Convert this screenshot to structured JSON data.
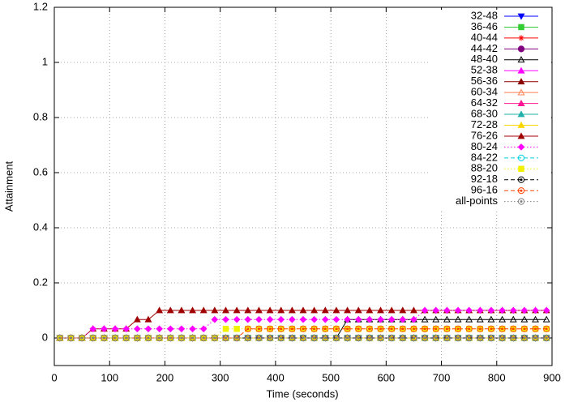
{
  "chart_data": {
    "type": "line",
    "x_label": "Time (seconds)",
    "y_label": "Attainment",
    "xlim": [
      0,
      900
    ],
    "ylim": [
      -0.1,
      1.2
    ],
    "xticks": [
      0,
      100,
      200,
      300,
      400,
      500,
      600,
      700,
      800,
      900
    ],
    "yticks": [
      0,
      0.2,
      0.4,
      0.6,
      0.8,
      1,
      1.2
    ],
    "grid": true,
    "legend": "top-right",
    "x": [
      10,
      30,
      50,
      70,
      90,
      110,
      130,
      150,
      170,
      190,
      210,
      230,
      250,
      270,
      290,
      310,
      330,
      350,
      370,
      390,
      410,
      430,
      450,
      470,
      490,
      510,
      530,
      550,
      570,
      590,
      610,
      630,
      650,
      670,
      690,
      710,
      730,
      750,
      770,
      790,
      810,
      830,
      850,
      870,
      890
    ],
    "series": [
      {
        "name": "32-48",
        "color": "#0000ff",
        "marker": "triangle-down",
        "dash": "solid",
        "values": [
          0,
          0,
          0,
          0,
          0,
          0,
          0,
          0,
          0,
          0,
          0,
          0,
          0,
          0,
          0,
          0,
          0,
          0,
          0,
          0,
          0,
          0,
          0,
          0,
          0,
          0,
          0,
          0,
          0,
          0,
          0,
          0,
          0,
          0,
          0,
          0,
          0,
          0,
          0,
          0,
          0,
          0,
          0,
          0,
          0
        ]
      },
      {
        "name": "36-46",
        "color": "#33cc33",
        "marker": "square",
        "dash": "solid",
        "values": [
          0,
          0,
          0,
          0,
          0,
          0,
          0,
          0,
          0,
          0,
          0,
          0,
          0,
          0,
          0,
          0,
          0,
          0,
          0,
          0,
          0,
          0,
          0,
          0,
          0,
          0,
          0,
          0,
          0,
          0,
          0,
          0,
          0,
          0,
          0,
          0,
          0,
          0,
          0,
          0,
          0,
          0,
          0,
          0,
          0
        ]
      },
      {
        "name": "40-44",
        "color": "#ff0000",
        "marker": "star",
        "dash": "solid",
        "values": [
          0,
          0,
          0,
          0,
          0,
          0,
          0,
          0,
          0,
          0,
          0,
          0,
          0,
          0,
          0,
          0,
          0,
          0,
          0,
          0,
          0,
          0,
          0,
          0,
          0,
          0,
          0,
          0,
          0,
          0,
          0,
          0,
          0,
          0,
          0,
          0,
          0,
          0,
          0,
          0,
          0,
          0,
          0,
          0,
          0
        ]
      },
      {
        "name": "44-42",
        "color": "#800080",
        "marker": "circle",
        "dash": "solid",
        "values": [
          0,
          0,
          0,
          0,
          0,
          0,
          0,
          0,
          0,
          0,
          0,
          0,
          0,
          0,
          0,
          0,
          0,
          0,
          0,
          0,
          0,
          0,
          0,
          0,
          0,
          0,
          0,
          0,
          0,
          0,
          0,
          0,
          0,
          0,
          0,
          0,
          0,
          0,
          0,
          0,
          0,
          0,
          0,
          0,
          0
        ]
      },
      {
        "name": "48-40",
        "color": "#000000",
        "marker": "open-triangle",
        "dash": "solid",
        "values": [
          0,
          0,
          0,
          0,
          0,
          0,
          0,
          0,
          0,
          0,
          0,
          0,
          0,
          0,
          0,
          0,
          0,
          0,
          0,
          0,
          0,
          0,
          0,
          0,
          0,
          0,
          0.067,
          0.067,
          0.067,
          0.067,
          0.067,
          0.067,
          0.067,
          0.067,
          0.067,
          0.067,
          0.067,
          0.067,
          0.067,
          0.067,
          0.067,
          0.067,
          0.067,
          0.067,
          0.067
        ]
      },
      {
        "name": "52-38",
        "color": "#ff00ff",
        "marker": "triangle",
        "dash": "solid",
        "values": [
          0,
          0,
          0,
          0,
          0,
          0,
          0,
          0,
          0,
          0,
          0,
          0,
          0,
          0,
          0,
          0,
          0,
          0,
          0,
          0,
          0,
          0,
          0,
          0,
          0,
          0,
          0,
          0,
          0,
          0,
          0,
          0,
          0,
          0,
          0,
          0,
          0,
          0,
          0,
          0,
          0,
          0,
          0,
          0,
          0
        ]
      },
      {
        "name": "56-36",
        "color": "#8b0000",
        "marker": "triangle",
        "dash": "solid",
        "values": [
          0,
          0,
          0,
          0,
          0,
          0,
          0,
          0,
          0,
          0,
          0,
          0,
          0,
          0,
          0,
          0,
          0,
          0,
          0,
          0,
          0,
          0,
          0,
          0,
          0,
          0,
          0,
          0,
          0,
          0,
          0,
          0,
          0,
          0,
          0,
          0,
          0,
          0,
          0,
          0,
          0,
          0,
          0,
          0,
          0
        ]
      },
      {
        "name": "60-34",
        "color": "#ff7f50",
        "marker": "open-triangle",
        "dash": "solid",
        "values": [
          0,
          0,
          0,
          0,
          0,
          0,
          0,
          0,
          0,
          0,
          0,
          0,
          0,
          0,
          0,
          0,
          0,
          0,
          0,
          0,
          0,
          0,
          0,
          0,
          0,
          0,
          0,
          0,
          0,
          0,
          0,
          0,
          0,
          0,
          0,
          0,
          0,
          0,
          0,
          0,
          0,
          0,
          0,
          0,
          0
        ]
      },
      {
        "name": "64-32",
        "color": "#ff1493",
        "marker": "triangle",
        "dash": "solid",
        "values": [
          0,
          0,
          0,
          0,
          0,
          0,
          0,
          0,
          0,
          0,
          0,
          0,
          0,
          0,
          0,
          0,
          0,
          0,
          0,
          0,
          0,
          0,
          0,
          0,
          0,
          0,
          0,
          0,
          0,
          0,
          0,
          0,
          0,
          0,
          0,
          0,
          0,
          0,
          0,
          0,
          0,
          0,
          0,
          0,
          0
        ]
      },
      {
        "name": "68-30",
        "color": "#20b2aa",
        "marker": "triangle",
        "dash": "solid",
        "values": [
          0,
          0,
          0,
          0,
          0,
          0,
          0,
          0,
          0,
          0,
          0,
          0,
          0,
          0,
          0,
          0,
          0,
          0,
          0,
          0,
          0,
          0,
          0,
          0,
          0,
          0,
          0,
          0,
          0,
          0,
          0,
          0,
          0,
          0,
          0,
          0,
          0,
          0,
          0,
          0,
          0,
          0,
          0,
          0,
          0
        ]
      },
      {
        "name": "72-28",
        "color": "#ffd700",
        "marker": "triangle",
        "dash": "solid",
        "values": [
          0,
          0,
          0,
          0,
          0,
          0,
          0,
          0,
          0,
          0,
          0,
          0,
          0,
          0,
          0,
          0,
          0,
          0,
          0,
          0,
          0,
          0,
          0,
          0,
          0,
          0,
          0,
          0,
          0,
          0,
          0,
          0,
          0,
          0,
          0,
          0,
          0,
          0,
          0,
          0,
          0,
          0,
          0,
          0,
          0
        ]
      },
      {
        "name": "76-26",
        "color": "#a00000",
        "marker": "triangle",
        "dash": "solid",
        "values": [
          0,
          0,
          0,
          0.033,
          0.033,
          0.033,
          0.033,
          0.067,
          0.067,
          0.1,
          0.1,
          0.1,
          0.1,
          0.1,
          0.1,
          0.1,
          0.1,
          0.1,
          0.1,
          0.1,
          0.1,
          0.1,
          0.1,
          0.1,
          0.1,
          0.1,
          0.1,
          0.1,
          0.1,
          0.1,
          0.1,
          0.1,
          0.1,
          0.1,
          0.1,
          0.1,
          0.1,
          0.1,
          0.1,
          0.1,
          0.1,
          0.1,
          0.1,
          0.1,
          0.1
        ]
      },
      {
        "name": "80-24",
        "color": "#ff00ff",
        "marker": "diamond",
        "dash": "dotted",
        "values": [
          0,
          0,
          0,
          0.033,
          0.033,
          0.033,
          0.033,
          0.033,
          0.033,
          0.033,
          0.033,
          0.033,
          0.033,
          0.033,
          0.067,
          0.067,
          0.067,
          0.067,
          0.067,
          0.067,
          0.067,
          0.067,
          0.067,
          0.067,
          0.067,
          0.067,
          0.067,
          0.067,
          0.067,
          0.067,
          0.067,
          0.067,
          0.067,
          0.1,
          0.1,
          0.1,
          0.1,
          0.1,
          0.1,
          0.1,
          0.1,
          0.1,
          0.1,
          0.1,
          0.1
        ]
      },
      {
        "name": "84-22",
        "color": "#00d0e0",
        "marker": "open-circle",
        "dash": "dashed",
        "values": [
          0,
          0,
          0,
          0,
          0,
          0,
          0,
          0,
          0,
          0,
          0,
          0,
          0,
          0,
          0,
          0,
          0,
          0,
          0,
          0,
          0,
          0,
          0,
          0,
          0,
          0,
          0,
          0,
          0,
          0,
          0,
          0,
          0,
          0,
          0,
          0,
          0,
          0,
          0,
          0,
          0,
          0,
          0,
          0,
          0
        ]
      },
      {
        "name": "88-20",
        "color": "#f0f000",
        "marker": "square",
        "dash": "dotted",
        "values": [
          0,
          0,
          0,
          0,
          0,
          0,
          0,
          0,
          0,
          0,
          0,
          0,
          0,
          0,
          0,
          0.033,
          0.033,
          0.033,
          0.033,
          0.033,
          0.033,
          0.033,
          0.033,
          0.033,
          0.033,
          0.033,
          0.033,
          0.033,
          0.033,
          0.033,
          0.033,
          0.033,
          0.033,
          0.033,
          0.033,
          0.033,
          0.033,
          0.033,
          0.033,
          0.033,
          0.033,
          0.033,
          0.033,
          0.033,
          0.033
        ]
      },
      {
        "name": "92-18",
        "color": "#000000",
        "marker": "open-circle-dot",
        "dash": "dashed",
        "values": [
          0,
          0,
          0,
          0,
          0,
          0,
          0,
          0,
          0,
          0,
          0,
          0,
          0,
          0,
          0,
          0,
          0,
          0,
          0,
          0,
          0,
          0,
          0,
          0,
          0,
          0,
          0,
          0,
          0,
          0,
          0,
          0,
          0,
          0,
          0,
          0,
          0,
          0,
          0,
          0,
          0,
          0,
          0,
          0,
          0
        ]
      },
      {
        "name": "96-16",
        "color": "#ff4500",
        "marker": "open-circle-dot",
        "dash": "dashed",
        "values": [
          0,
          0,
          0,
          0,
          0,
          0,
          0,
          0,
          0,
          0,
          0,
          0,
          0,
          0,
          0,
          0,
          0,
          0.033,
          0.033,
          0.033,
          0.033,
          0.033,
          0.033,
          0.033,
          0.033,
          0.033,
          0.033,
          0.033,
          0.033,
          0.033,
          0.033,
          0.033,
          0.033,
          0.033,
          0.033,
          0.033,
          0.033,
          0.033,
          0.033,
          0.033,
          0.033,
          0.033,
          0.033,
          0.033,
          0.033
        ]
      },
      {
        "name": "all-points",
        "color": "#808080",
        "marker": "open-circle-dot",
        "dash": "dotted",
        "values": [
          0,
          0,
          0,
          0,
          0,
          0,
          0,
          0,
          0,
          0,
          0,
          0,
          0,
          0,
          0,
          0,
          0,
          0,
          0,
          0,
          0,
          0,
          0,
          0,
          0,
          0,
          0,
          0,
          0,
          0,
          0,
          0,
          0,
          0,
          0,
          0,
          0,
          0,
          0,
          0,
          0,
          0,
          0,
          0,
          0
        ]
      }
    ]
  }
}
